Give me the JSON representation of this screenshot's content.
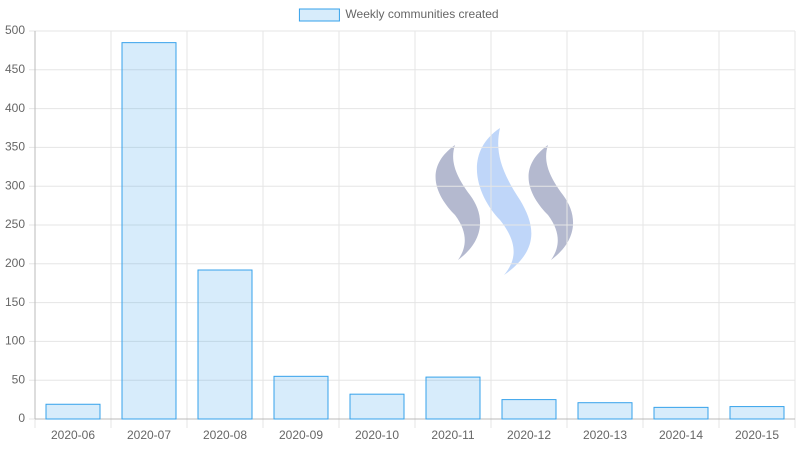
{
  "chart_data": {
    "type": "bar",
    "categories": [
      "2020-06",
      "2020-07",
      "2020-08",
      "2020-09",
      "2020-10",
      "2020-11",
      "2020-12",
      "2020-13",
      "2020-14",
      "2020-15"
    ],
    "series": [
      {
        "name": "Weekly communities created",
        "color": "#36a2eb",
        "values": [
          19,
          485,
          192,
          55,
          32,
          54,
          25,
          21,
          15,
          16
        ]
      }
    ],
    "ylim": [
      0,
      500
    ],
    "yticks": [
      0,
      50,
      100,
      150,
      200,
      250,
      300,
      350,
      400,
      450,
      500
    ],
    "grid": true,
    "legend": "top"
  }
}
